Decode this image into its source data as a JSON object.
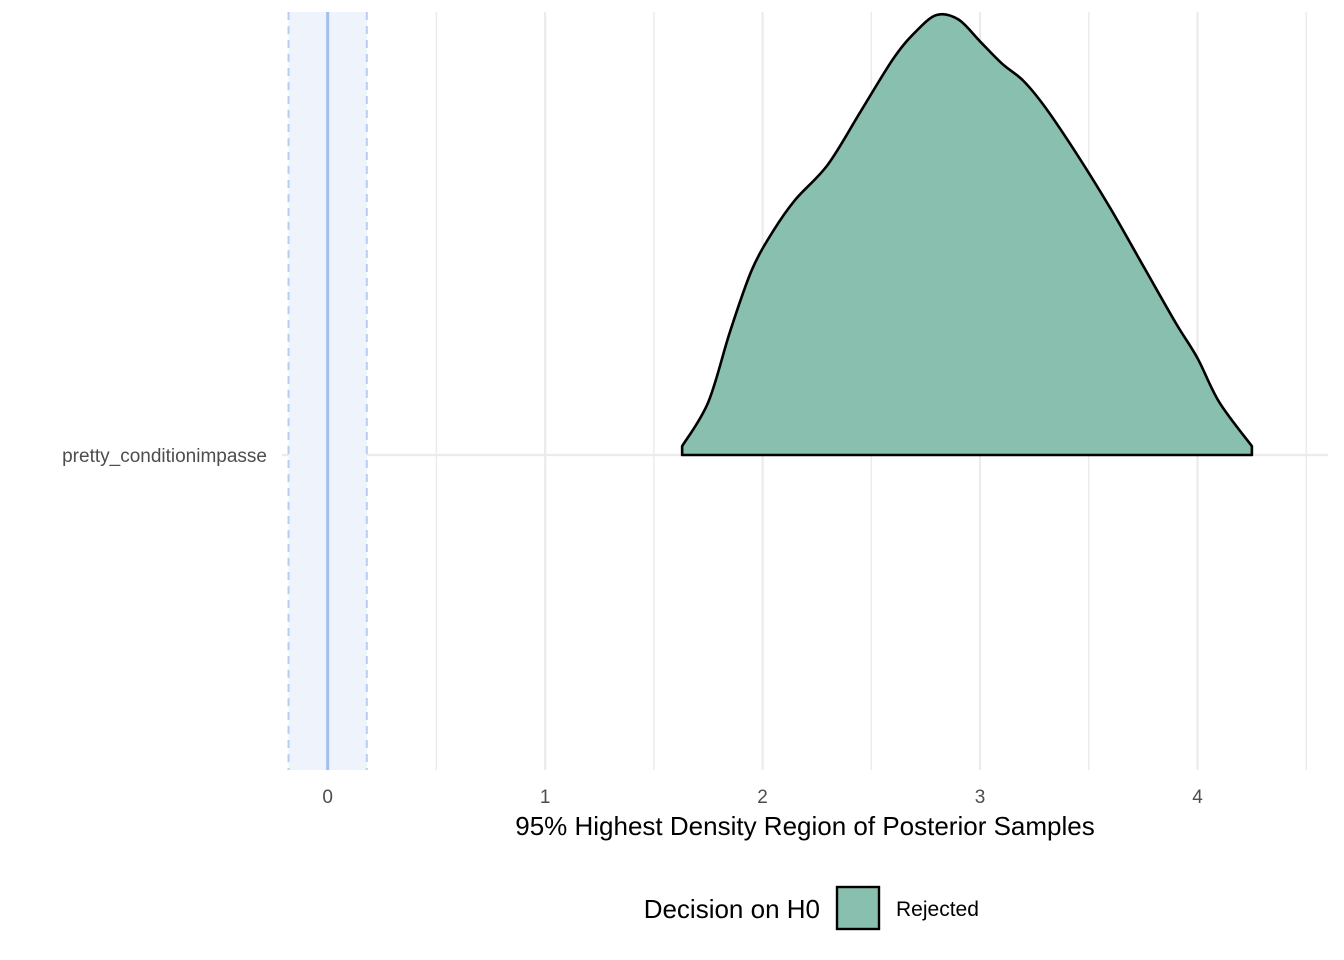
{
  "chart_data": {
    "type": "area",
    "subtype": "density-ridge",
    "xlabel": "95% Highest Density Region of Posterior Samples",
    "ylabel": "",
    "xlim": [
      -0.21,
      4.6
    ],
    "x_ticks": [
      0,
      1,
      2,
      3,
      4
    ],
    "y_categories": [
      "pretty_conditionimpasse"
    ],
    "rope": {
      "center": 0,
      "low": -0.18,
      "high": 0.18,
      "color": "#a3bfec",
      "band_color": "#eef3fc"
    },
    "grid": true,
    "series": [
      {
        "category": "pretty_conditionimpasse",
        "fill": "#88bfae",
        "stroke": "#000000",
        "hdr": [
          1.63,
          4.25
        ],
        "density_x": [
          1.63,
          1.75,
          1.85,
          1.95,
          2.05,
          2.15,
          2.3,
          2.45,
          2.6,
          2.7,
          2.8,
          2.9,
          3.0,
          3.1,
          3.2,
          3.3,
          3.45,
          3.6,
          3.75,
          3.9,
          4.0,
          4.1,
          4.25
        ],
        "density_y": [
          0.02,
          0.12,
          0.28,
          0.42,
          0.51,
          0.58,
          0.66,
          0.78,
          0.9,
          0.96,
          1.0,
          0.99,
          0.94,
          0.89,
          0.85,
          0.79,
          0.68,
          0.56,
          0.43,
          0.3,
          0.22,
          0.12,
          0.02
        ]
      }
    ],
    "legend": {
      "title": "Decision on H0",
      "position": "bottom",
      "entries": [
        {
          "label": "Rejected",
          "color": "#88bfae"
        }
      ]
    }
  }
}
